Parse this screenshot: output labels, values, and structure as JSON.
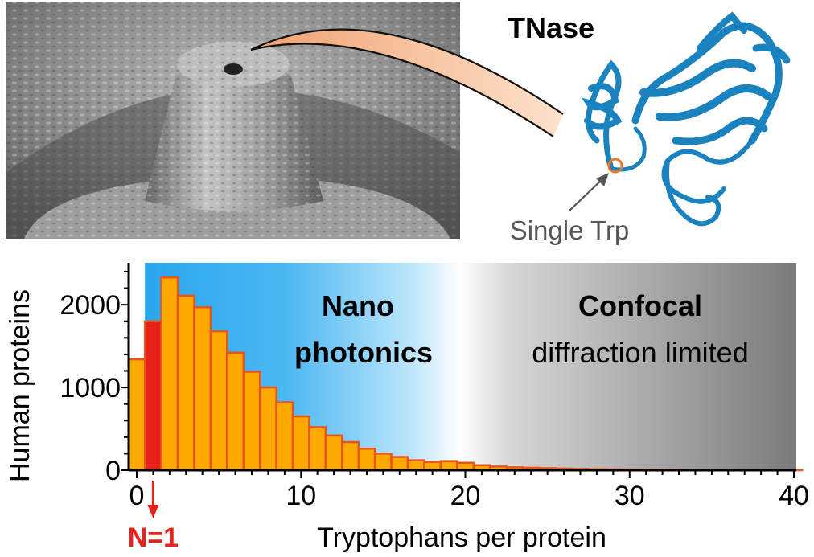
{
  "top": {
    "protein_name": "TNase",
    "callout_label": "Single Trp"
  },
  "regions": {
    "nano_line1": "Nano",
    "nano_line2": "photonics",
    "confocal_line1": "Confocal",
    "confocal_line2": "diffraction limited"
  },
  "highlight": {
    "label": "N=1",
    "x": 1,
    "color": "#e8221a"
  },
  "colors": {
    "bar_fill": "#ffa800",
    "bar_stroke": "#e8541a",
    "highlight_fill": "#e8221a",
    "nano_blue": "#3cb0f0",
    "confocal_gray": "#7a7a7a",
    "protein_blue": "#1a82be",
    "callout_orange": "#ee7a28"
  },
  "chart_data": {
    "type": "bar",
    "xlabel": "Tryptophans per protein",
    "ylabel": "Human proteins",
    "xlim": [
      -0.5,
      40
    ],
    "ylim": [
      0,
      2400
    ],
    "xticks": [
      0,
      10,
      20,
      30,
      40
    ],
    "yticks": [
      0,
      1000,
      2000
    ],
    "grid": false,
    "x": [
      0,
      1,
      2,
      3,
      4,
      5,
      6,
      7,
      8,
      9,
      10,
      11,
      12,
      13,
      14,
      15,
      16,
      17,
      18,
      19,
      20,
      21,
      22,
      23,
      24,
      25,
      26,
      27,
      28,
      29,
      30,
      31,
      32,
      33,
      34,
      35,
      36,
      37,
      38,
      39,
      40
    ],
    "values": [
      1340,
      1800,
      2330,
      2110,
      1970,
      1680,
      1420,
      1190,
      1000,
      820,
      650,
      520,
      420,
      340,
      260,
      200,
      160,
      120,
      100,
      110,
      90,
      60,
      45,
      35,
      30,
      25,
      20,
      15,
      12,
      10,
      8,
      6,
      5,
      4,
      3,
      3,
      2,
      2,
      2,
      1,
      1
    ]
  }
}
